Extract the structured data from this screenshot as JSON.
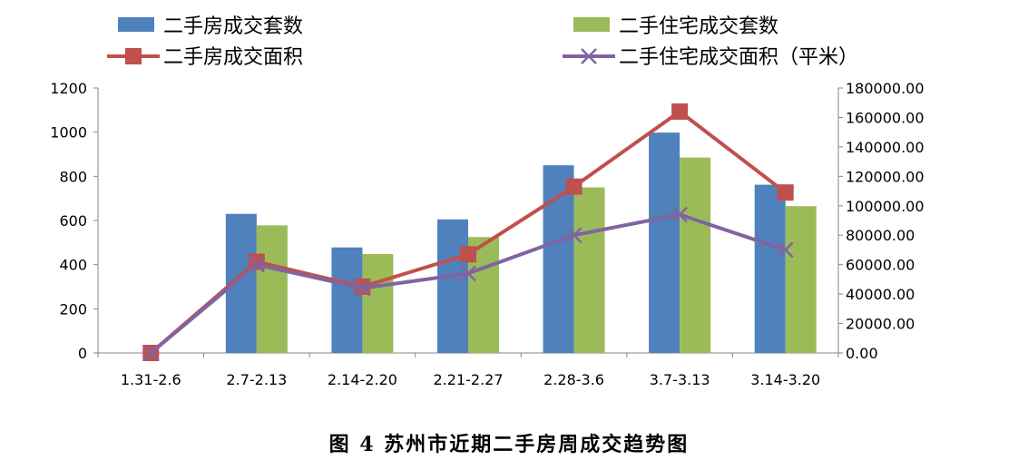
{
  "caption": "图 4 苏州市近期二手房周成交趋势图",
  "chart_data": {
    "type": "bar",
    "categories": [
      "1.31-2.6",
      "2.7-2.13",
      "2.14-2.20",
      "2.21-2.27",
      "2.28-3.6",
      "3.7-3.13",
      "3.14-3.20"
    ],
    "legend_placement": "top",
    "grid": false,
    "y_left": {
      "ylim": [
        0,
        1200
      ],
      "ticks": [
        "0",
        "200",
        "400",
        "600",
        "800",
        "1000",
        "1200"
      ]
    },
    "y_right": {
      "ylim": [
        0,
        180000
      ],
      "ticks": [
        "0.00",
        "20000.00",
        "40000.00",
        "60000.00",
        "80000.00",
        "100000.00",
        "120000.00",
        "140000.00",
        "160000.00",
        "180000.00"
      ]
    },
    "series": [
      {
        "name": "二手房成交套数",
        "type": "bar",
        "axis": "left",
        "color": "#4F81BD",
        "values": [
          0,
          630,
          478,
          605,
          850,
          998,
          762
        ]
      },
      {
        "name": "二手住宅成交套数",
        "type": "bar",
        "axis": "left",
        "color": "#9BBB59",
        "values": [
          0,
          578,
          448,
          525,
          750,
          885,
          665
        ]
      },
      {
        "name": "二手房成交面积",
        "type": "line",
        "marker": "square",
        "axis": "right",
        "color": "#C0504D",
        "values": [
          0,
          62000,
          45000,
          67000,
          113000,
          164000,
          109000
        ]
      },
      {
        "name": "二手住宅成交面积（平米）",
        "type": "line",
        "marker": "x",
        "axis": "right",
        "color": "#8064A2",
        "values": [
          0,
          60000,
          44000,
          54000,
          80000,
          94000,
          70000
        ]
      }
    ]
  }
}
